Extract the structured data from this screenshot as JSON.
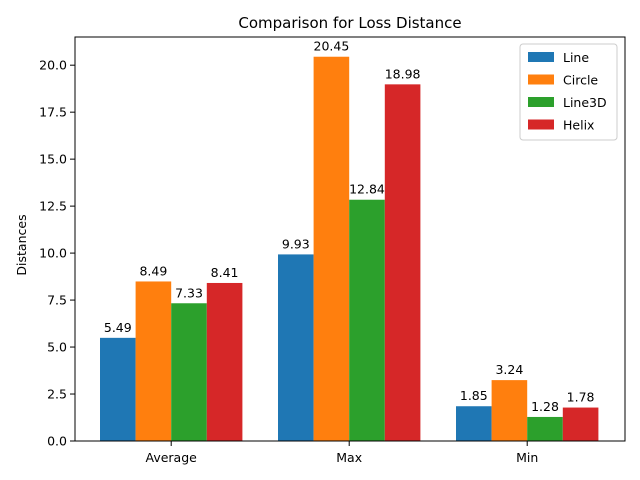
{
  "chart_data": {
    "type": "bar",
    "title": "Comparison for Loss Distance",
    "xlabel": "",
    "ylabel": "Distances",
    "categories": [
      "Average",
      "Max",
      "Min"
    ],
    "series": [
      {
        "name": "Line",
        "color": "#1f77b4",
        "values": [
          5.49,
          9.93,
          1.85
        ]
      },
      {
        "name": "Circle",
        "color": "#ff7f0e",
        "values": [
          8.49,
          20.45,
          3.24
        ]
      },
      {
        "name": "Line3D",
        "color": "#2ca02c",
        "values": [
          7.33,
          12.84,
          1.28
        ]
      },
      {
        "name": "Helix",
        "color": "#d62728",
        "values": [
          8.41,
          18.98,
          1.78
        ]
      }
    ],
    "ylim": [
      0,
      21.5
    ],
    "yticks": [
      "0.0",
      "2.5",
      "5.0",
      "7.5",
      "10.0",
      "12.5",
      "15.0",
      "17.5",
      "20.0"
    ],
    "grid": false,
    "legend_position": "top-right"
  }
}
